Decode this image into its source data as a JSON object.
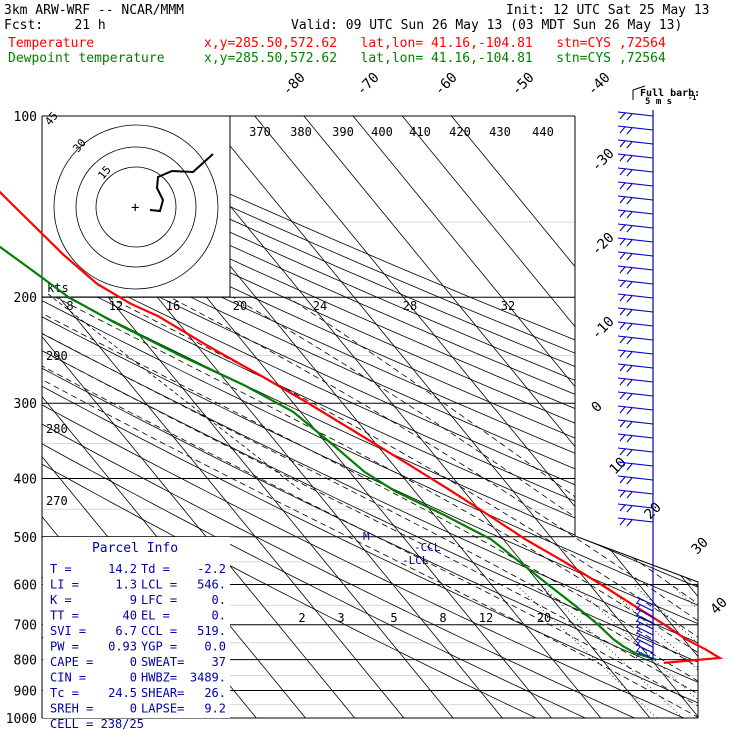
{
  "header": {
    "model": "3km ARW-WRF -- NCAR/MMM",
    "init": "Init: 12 UTC Sat 25 May 13",
    "fcst": "Fcst:    21 h",
    "valid": "Valid: 09 UTC Sun 26 May 13 (03 MDT Sun 26 May 13)",
    "temp_label": "Temperature",
    "temp_info": "x,y=285.50,572.62   lat,lon= 41.16,-104.81   stn=CYS ,72564",
    "dew_label": "Dewpoint temperature",
    "dew_info": "x,y=285.50,572.62   lat,lon= 41.16,-104.81   stn=CYS ,72564"
  },
  "colors": {
    "temperature": "#ff0000",
    "dewpoint": "#008000",
    "wind_barbs": "#0000cc",
    "grid": "#000000"
  },
  "barb_legend": {
    "title": "Full barb:",
    "value": "5 m s",
    "exp": "-1"
  },
  "chart_data": {
    "type": "line",
    "title": "",
    "ylabel": "",
    "xlabel": "",
    "pressure_levels": [
      "100",
      "200",
      "300",
      "400",
      "500",
      "600",
      "700",
      "800",
      "900",
      "1000"
    ],
    "pressure_values": [
      100,
      200,
      300,
      400,
      500,
      600,
      700,
      800,
      900,
      1000
    ],
    "isotherm_labels": [
      "-80",
      "-70",
      "-60",
      "-50",
      "-40",
      "-30",
      "-20",
      "-10",
      "0",
      "10",
      "20",
      "30",
      "40"
    ],
    "isotherm_values": [
      -80,
      -70,
      -60,
      -50,
      -40,
      -30,
      -20,
      -10,
      0,
      10,
      20,
      30,
      40
    ],
    "theta_labels": [
      "370",
      "380",
      "390",
      "400",
      "410",
      "420",
      "430",
      "440"
    ],
    "theta_side_labels": [
      "290",
      "280",
      "270"
    ],
    "mixing_ratio_labels": [
      "2",
      "3",
      "5",
      "8",
      "12",
      "20"
    ],
    "hodo_speed_labels": [
      "8",
      "12",
      "16",
      "20",
      "24",
      "28",
      "32"
    ],
    "hodo_unit": "kts",
    "hodo_rings": [
      "15",
      "30",
      "45"
    ],
    "series": [
      {
        "name": "Temperature",
        "p": [
          810,
          795,
          770,
          740,
          700,
          650,
          600,
          550,
          505,
          460,
          420,
          380,
          340,
          300,
          270,
          240,
          215,
          205,
          190,
          170,
          140,
          115,
          100
        ],
        "t": [
          2,
          14.2,
          12.8,
          10.5,
          8.5,
          5.5,
          2.3,
          -1.4,
          -5.5,
          -9,
          -12.5,
          -16.7,
          -21.5,
          -27,
          -32,
          -38,
          -43,
          -46.5,
          -50,
          -52,
          -54,
          -56,
          -57.5
        ]
      },
      {
        "name": "Dewpoint temperature",
        "p": [
          800,
          780,
          760,
          740,
          700,
          650,
          600,
          550,
          505,
          460,
          420,
          390,
          350,
          310,
          280,
          250,
          220,
          200,
          180,
          160,
          140,
          120,
          100
        ],
        "t": [
          1,
          -2.2,
          -3.5,
          -4.3,
          -5,
          -6.5,
          -8.5,
          -10.5,
          -12.5,
          -18,
          -24,
          -27,
          -29,
          -31.5,
          -37,
          -45,
          -53,
          -58,
          -61,
          -64.5,
          -68,
          -71,
          -76
        ]
      }
    ],
    "markers": [
      {
        "label": "-CCL",
        "p": 519
      },
      {
        "label": "-LCL",
        "p": 546
      },
      {
        "label": "M",
        "p": 505
      }
    ]
  },
  "parcel_info": {
    "title": "Parcel Info",
    "rows": [
      {
        "a": "T   =",
        "av": "14.2",
        "b": "Td =",
        "bv": "-2.2"
      },
      {
        "a": "LI  =",
        "av": "1.3",
        "b": "LCL =",
        "bv": "546."
      },
      {
        "a": "K   =",
        "av": "9",
        "b": "LFC =",
        "bv": "0."
      },
      {
        "a": "TT  =",
        "av": "40",
        "b": "EL  =",
        "bv": "0."
      },
      {
        "a": "SVI =",
        "av": "6.7",
        "b": "CCL =",
        "bv": "519."
      },
      {
        "a": "PW  =",
        "av": "0.93",
        "b": "YGP =",
        "bv": "0.0"
      },
      {
        "a": "CAPE =",
        "av": "0",
        "b": "SWEAT=",
        "bv": "37"
      },
      {
        "a": "CIN  =",
        "av": "0",
        "b": "HWBZ=",
        "bv": "3489."
      },
      {
        "a": "Tc  =",
        "av": "24.5",
        "b": "SHEAR=",
        "bv": "26."
      },
      {
        "a": "SREH =",
        "av": "0",
        "b": "LAPSE=",
        "bv": "9.2"
      }
    ],
    "cell": "CELL = 238/25"
  }
}
